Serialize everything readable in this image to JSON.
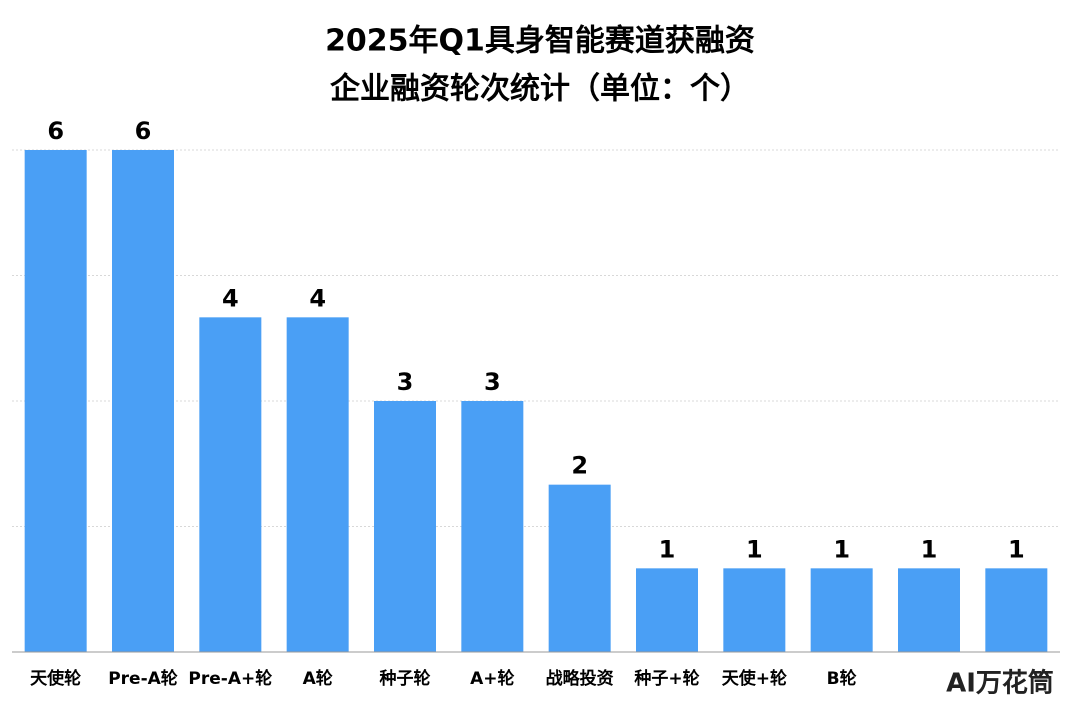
{
  "chart_data": {
    "type": "bar",
    "title": [
      "2025年Q1具身智能赛道获融资",
      "企业融资轮次统计（单位：个）"
    ],
    "categories": [
      "天使轮",
      "Pre-A轮",
      "Pre-A+轮",
      "A轮",
      "种子轮",
      "A+轮",
      "战略投资",
      "种子+轮",
      "天使+轮",
      "B轮",
      null,
      null
    ],
    "values": [
      6,
      6,
      4,
      4,
      3,
      3,
      2,
      1,
      1,
      1,
      1,
      1
    ],
    "color": "#4a9ff5",
    "ylim": [
      0,
      6
    ],
    "gridlines": [
      1.5,
      3,
      4.5,
      6
    ],
    "grid": true,
    "logo": "AI万花筒"
  }
}
